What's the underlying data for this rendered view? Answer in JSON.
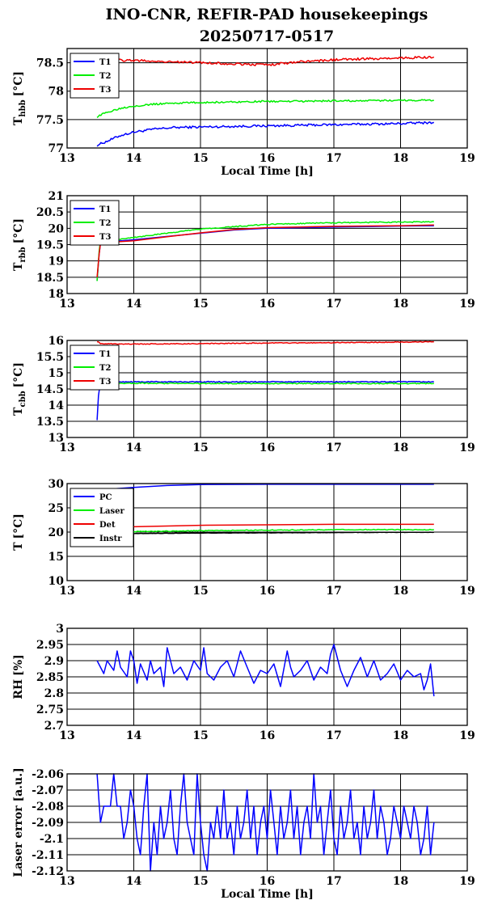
{
  "page": {
    "title_line1": "INO-CNR, REFIR-PAD housekeepings",
    "title_line2": "20250717-0517"
  },
  "colors": {
    "blue": "#0000ff",
    "green": "#00ee00",
    "red": "#ee0000",
    "black": "#000000"
  },
  "chart_data": [
    {
      "type": "line",
      "id": "thbb",
      "ylabel_main": "T",
      "ylabel_sub": "hbb",
      "ylabel_unit": "[°C]",
      "xlabel": "Local Time [h]",
      "xlim": [
        13,
        19
      ],
      "ylim": [
        77,
        78.75
      ],
      "xticks": [
        "13",
        "14",
        "15",
        "16",
        "17",
        "18",
        "19"
      ],
      "yticks": [
        {
          "v": 77,
          "t": "77"
        },
        {
          "v": 77.5,
          "t": "77.5"
        },
        {
          "v": 78,
          "t": "78"
        },
        {
          "v": 78.5,
          "t": "78.5"
        }
      ],
      "grid": true,
      "legend": "top-left",
      "series": [
        {
          "name": "T1",
          "color": "blue",
          "noise": 0.02,
          "x": [
            13.45,
            13.6,
            13.8,
            14.0,
            14.3,
            14.6,
            15.0,
            15.5,
            16.0,
            16.5,
            17.0,
            17.5,
            18.0,
            18.5
          ],
          "y": [
            77.05,
            77.12,
            77.22,
            77.28,
            77.33,
            77.36,
            77.37,
            77.38,
            77.39,
            77.4,
            77.41,
            77.42,
            77.43,
            77.45
          ]
        },
        {
          "name": "T2",
          "color": "green",
          "noise": 0.015,
          "x": [
            13.45,
            13.6,
            13.8,
            14.0,
            14.3,
            14.6,
            15.0,
            15.5,
            16.0,
            16.5,
            17.0,
            17.5,
            18.0,
            18.5
          ],
          "y": [
            77.55,
            77.63,
            77.7,
            77.74,
            77.77,
            77.79,
            77.8,
            77.81,
            77.82,
            77.82,
            77.83,
            77.83,
            77.84,
            77.84
          ]
        },
        {
          "name": "T3",
          "color": "red",
          "noise": 0.02,
          "x": [
            13.45,
            14.0,
            14.5,
            15.0,
            15.5,
            16.0,
            16.5,
            17.0,
            17.5,
            18.0,
            18.5
          ],
          "y": [
            78.55,
            78.54,
            78.52,
            78.5,
            78.48,
            78.46,
            78.52,
            78.55,
            78.57,
            78.58,
            78.6
          ]
        }
      ]
    },
    {
      "type": "line",
      "id": "trbb",
      "ylabel_main": "T",
      "ylabel_sub": "rbb",
      "ylabel_unit": "[°C]",
      "xlabel": "",
      "xlim": [
        13,
        19
      ],
      "ylim": [
        18,
        21
      ],
      "xticks": [
        "13",
        "14",
        "15",
        "16",
        "17",
        "18",
        "19"
      ],
      "yticks": [
        {
          "v": 18,
          "t": "18"
        },
        {
          "v": 18.5,
          "t": "18.5"
        },
        {
          "v": 19,
          "t": "19"
        },
        {
          "v": 19.5,
          "t": "19.5"
        },
        {
          "v": 20,
          "t": "20"
        },
        {
          "v": 20.5,
          "t": "20.5"
        },
        {
          "v": 21,
          "t": "21"
        }
      ],
      "grid": true,
      "legend": "top-left",
      "series": [
        {
          "name": "T1",
          "color": "blue",
          "noise": 0.0,
          "x": [
            13.45,
            13.48,
            13.5,
            13.7,
            14.0,
            14.5,
            15.0,
            15.5,
            16.0,
            16.5,
            17.0,
            17.5,
            18.0,
            18.5
          ],
          "y": [
            18.4,
            19.2,
            19.55,
            19.6,
            19.65,
            19.75,
            19.85,
            19.95,
            20.0,
            20.02,
            20.04,
            20.05,
            20.07,
            20.08
          ]
        },
        {
          "name": "T2",
          "color": "green",
          "noise": 0.015,
          "x": [
            13.45,
            13.48,
            13.5,
            13.7,
            14.0,
            14.5,
            15.0,
            15.5,
            16.0,
            16.5,
            17.0,
            17.5,
            18.0,
            18.5
          ],
          "y": [
            18.4,
            19.3,
            19.6,
            19.65,
            19.72,
            19.85,
            19.98,
            20.05,
            20.12,
            20.15,
            20.17,
            20.18,
            20.19,
            20.2
          ]
        },
        {
          "name": "T3",
          "color": "red",
          "noise": 0.0,
          "x": [
            13.45,
            13.48,
            13.5,
            13.7,
            14.0,
            14.5,
            15.0,
            15.5,
            16.0,
            16.5,
            17.0,
            17.5,
            18.0,
            18.5
          ],
          "y": [
            18.5,
            19.2,
            19.55,
            19.58,
            19.62,
            19.74,
            19.86,
            19.96,
            20.02,
            20.04,
            20.06,
            20.07,
            20.08,
            20.1
          ]
        }
      ]
    },
    {
      "type": "line",
      "id": "tcbb",
      "ylabel_main": "T",
      "ylabel_sub": "cbb",
      "ylabel_unit": "[°C]",
      "xlabel": "",
      "xlim": [
        13,
        19
      ],
      "ylim": [
        13,
        16
      ],
      "xticks": [
        "13",
        "14",
        "15",
        "16",
        "17",
        "18",
        "19"
      ],
      "yticks": [
        {
          "v": 13,
          "t": "13"
        },
        {
          "v": 13.5,
          "t": "13.5"
        },
        {
          "v": 14,
          "t": "14"
        },
        {
          "v": 14.5,
          "t": "14.5"
        },
        {
          "v": 15,
          "t": "15"
        },
        {
          "v": 15.5,
          "t": "15.5"
        },
        {
          "v": 16,
          "t": "16"
        }
      ],
      "grid": true,
      "legend": "top-left",
      "series": [
        {
          "name": "T1",
          "color": "blue",
          "noise": 0.015,
          "x": [
            13.45,
            13.47,
            13.5,
            13.6,
            14.0,
            15.0,
            16.0,
            17.0,
            18.0,
            18.5
          ],
          "y": [
            13.55,
            14.3,
            14.68,
            14.72,
            14.72,
            14.72,
            14.72,
            14.72,
            14.72,
            14.72
          ]
        },
        {
          "name": "T2",
          "color": "green",
          "noise": 0.015,
          "x": [
            13.45,
            13.5,
            13.6,
            14.0,
            15.0,
            16.0,
            17.0,
            18.0,
            18.5
          ],
          "y": [
            14.6,
            14.68,
            14.68,
            14.68,
            14.67,
            14.67,
            14.67,
            14.67,
            14.67
          ]
        },
        {
          "name": "T3",
          "color": "red",
          "noise": 0.012,
          "x": [
            13.45,
            13.5,
            14.0,
            15.0,
            16.0,
            17.0,
            18.0,
            18.5
          ],
          "y": [
            15.97,
            15.9,
            15.89,
            15.9,
            15.92,
            15.93,
            15.95,
            15.96
          ]
        }
      ]
    },
    {
      "type": "line",
      "id": "temps",
      "ylabel_main": "T",
      "ylabel_sub": "",
      "ylabel_unit": "[°C]",
      "xlabel": "",
      "xlim": [
        13,
        19
      ],
      "ylim": [
        10,
        30
      ],
      "xticks": [
        "13",
        "14",
        "15",
        "16",
        "17",
        "18",
        "19"
      ],
      "yticks": [
        {
          "v": 10,
          "t": "10"
        },
        {
          "v": 15,
          "t": "15"
        },
        {
          "v": 20,
          "t": "20"
        },
        {
          "v": 25,
          "t": "25"
        },
        {
          "v": 30,
          "t": "30"
        }
      ],
      "grid": true,
      "legend": "top-left",
      "series": [
        {
          "name": "PC",
          "color": "blue",
          "noise": 0.0,
          "x": [
            13.45,
            14.0,
            14.5,
            15.0,
            16.0,
            17.0,
            18.0,
            18.5
          ],
          "y": [
            28.7,
            29.2,
            29.6,
            29.8,
            29.85,
            29.85,
            29.85,
            29.85
          ]
        },
        {
          "name": "Laser",
          "color": "green",
          "noise": 0.08,
          "x": [
            13.45,
            14.0,
            15.0,
            16.0,
            17.0,
            18.0,
            18.5
          ],
          "y": [
            19.9,
            20.1,
            20.3,
            20.4,
            20.5,
            20.5,
            20.5
          ]
        },
        {
          "name": "Det",
          "color": "red",
          "noise": 0.0,
          "x": [
            13.45,
            14.0,
            15.0,
            16.0,
            17.0,
            18.0,
            18.5
          ],
          "y": [
            20.8,
            21.1,
            21.4,
            21.5,
            21.6,
            21.6,
            21.6
          ]
        },
        {
          "name": "Instr",
          "color": "black",
          "noise": 0.03,
          "x": [
            13.45,
            14.0,
            15.0,
            16.0,
            17.0,
            18.0,
            18.5
          ],
          "y": [
            19.6,
            19.7,
            19.8,
            19.85,
            19.9,
            19.95,
            19.95
          ]
        }
      ]
    },
    {
      "type": "line",
      "id": "rh",
      "ylabel_main": "RH",
      "ylabel_sub": "",
      "ylabel_unit": "[%]",
      "xlabel": "",
      "xlim": [
        13,
        19
      ],
      "ylim": [
        2.7,
        3
      ],
      "xticks": [
        "13",
        "14",
        "15",
        "16",
        "17",
        "18",
        "19"
      ],
      "yticks": [
        {
          "v": 2.7,
          "t": "2.7"
        },
        {
          "v": 2.75,
          "t": "2.75"
        },
        {
          "v": 2.8,
          "t": "2.8"
        },
        {
          "v": 2.85,
          "t": "2.85"
        },
        {
          "v": 2.9,
          "t": "2.9"
        },
        {
          "v": 2.95,
          "t": "2.95"
        },
        {
          "v": 3,
          "t": "3"
        }
      ],
      "grid": true,
      "legend": "none",
      "series": [
        {
          "name": "",
          "color": "blue",
          "noise": 0.0,
          "x": [
            13.45,
            13.55,
            13.6,
            13.7,
            13.75,
            13.8,
            13.9,
            13.95,
            14.0,
            14.05,
            14.1,
            14.2,
            14.25,
            14.3,
            14.4,
            14.45,
            14.5,
            14.6,
            14.7,
            14.8,
            14.9,
            15.0,
            15.05,
            15.1,
            15.2,
            15.3,
            15.4,
            15.5,
            15.6,
            15.7,
            15.8,
            15.9,
            16.0,
            16.1,
            16.2,
            16.3,
            16.35,
            16.4,
            16.5,
            16.6,
            16.7,
            16.8,
            16.9,
            16.95,
            17.0,
            17.1,
            17.2,
            17.3,
            17.4,
            17.5,
            17.6,
            17.7,
            17.8,
            17.9,
            18.0,
            18.1,
            18.2,
            18.3,
            18.35,
            18.4,
            18.45,
            18.5
          ],
          "y": [
            2.9,
            2.86,
            2.9,
            2.87,
            2.93,
            2.88,
            2.85,
            2.93,
            2.9,
            2.83,
            2.89,
            2.84,
            2.9,
            2.86,
            2.88,
            2.82,
            2.94,
            2.86,
            2.88,
            2.84,
            2.9,
            2.87,
            2.94,
            2.86,
            2.84,
            2.88,
            2.9,
            2.85,
            2.93,
            2.88,
            2.83,
            2.87,
            2.86,
            2.89,
            2.82,
            2.93,
            2.88,
            2.85,
            2.87,
            2.9,
            2.84,
            2.88,
            2.86,
            2.92,
            2.95,
            2.87,
            2.82,
            2.87,
            2.91,
            2.85,
            2.9,
            2.84,
            2.86,
            2.89,
            2.84,
            2.87,
            2.85,
            2.86,
            2.81,
            2.84,
            2.89,
            2.79
          ]
        }
      ]
    },
    {
      "type": "line",
      "id": "laser",
      "ylabel_main": "Laser error [a.u.]",
      "ylabel_sub": "",
      "ylabel_unit": "",
      "xlabel": "Local Time [h]",
      "xlim": [
        13,
        19
      ],
      "ylim": [
        -2.12,
        -2.06
      ],
      "xticks": [
        "13",
        "14",
        "15",
        "16",
        "17",
        "18",
        "19"
      ],
      "yticks": [
        {
          "v": -2.12,
          "t": "-2.12"
        },
        {
          "v": -2.11,
          "t": "-2.11"
        },
        {
          "v": -2.1,
          "t": "-2.1"
        },
        {
          "v": -2.09,
          "t": "-2.09"
        },
        {
          "v": -2.08,
          "t": "-2.08"
        },
        {
          "v": -2.07,
          "t": "-2.07"
        },
        {
          "v": -2.06,
          "t": "-2.06"
        }
      ],
      "grid": true,
      "legend": "none",
      "series": [
        {
          "name": "",
          "color": "blue",
          "noise": 0.0,
          "x": [
            13.45,
            13.5,
            13.55,
            13.6,
            13.65,
            13.7,
            13.75,
            13.8,
            13.85,
            13.9,
            13.95,
            14.0,
            14.05,
            14.1,
            14.15,
            14.2,
            14.25,
            14.3,
            14.35,
            14.4,
            14.45,
            14.5,
            14.55,
            14.6,
            14.65,
            14.7,
            14.75,
            14.8,
            14.85,
            14.9,
            14.95,
            15.0,
            15.05,
            15.1,
            15.15,
            15.2,
            15.25,
            15.3,
            15.35,
            15.4,
            15.45,
            15.5,
            15.55,
            15.6,
            15.65,
            15.7,
            15.75,
            15.8,
            15.85,
            15.9,
            15.95,
            16.0,
            16.05,
            16.1,
            16.15,
            16.2,
            16.25,
            16.3,
            16.35,
            16.4,
            16.45,
            16.5,
            16.55,
            16.6,
            16.65,
            16.7,
            16.75,
            16.8,
            16.85,
            16.9,
            16.95,
            17.0,
            17.05,
            17.1,
            17.15,
            17.2,
            17.25,
            17.3,
            17.35,
            17.4,
            17.45,
            17.5,
            17.55,
            17.6,
            17.65,
            17.7,
            17.75,
            17.8,
            17.85,
            17.9,
            17.95,
            18.0,
            18.05,
            18.1,
            18.15,
            18.2,
            18.25,
            18.3,
            18.35,
            18.4,
            18.45,
            18.5
          ],
          "y": [
            -2.06,
            -2.09,
            -2.08,
            -2.08,
            -2.08,
            -2.06,
            -2.08,
            -2.08,
            -2.1,
            -2.09,
            -2.07,
            -2.08,
            -2.1,
            -2.11,
            -2.08,
            -2.06,
            -2.12,
            -2.09,
            -2.11,
            -2.08,
            -2.1,
            -2.09,
            -2.07,
            -2.1,
            -2.11,
            -2.08,
            -2.06,
            -2.09,
            -2.1,
            -2.11,
            -2.06,
            -2.09,
            -2.11,
            -2.12,
            -2.09,
            -2.1,
            -2.08,
            -2.1,
            -2.07,
            -2.1,
            -2.09,
            -2.11,
            -2.08,
            -2.1,
            -2.09,
            -2.07,
            -2.1,
            -2.08,
            -2.11,
            -2.09,
            -2.08,
            -2.1,
            -2.07,
            -2.09,
            -2.11,
            -2.08,
            -2.1,
            -2.09,
            -2.07,
            -2.1,
            -2.08,
            -2.11,
            -2.09,
            -2.08,
            -2.1,
            -2.06,
            -2.09,
            -2.08,
            -2.11,
            -2.09,
            -2.07,
            -2.1,
            -2.11,
            -2.08,
            -2.1,
            -2.09,
            -2.07,
            -2.1,
            -2.09,
            -2.11,
            -2.08,
            -2.1,
            -2.09,
            -2.07,
            -2.1,
            -2.08,
            -2.09,
            -2.11,
            -2.1,
            -2.08,
            -2.09,
            -2.1,
            -2.08,
            -2.09,
            -2.1,
            -2.08,
            -2.09,
            -2.11,
            -2.1,
            -2.08,
            -2.11,
            -2.09
          ]
        }
      ]
    }
  ]
}
